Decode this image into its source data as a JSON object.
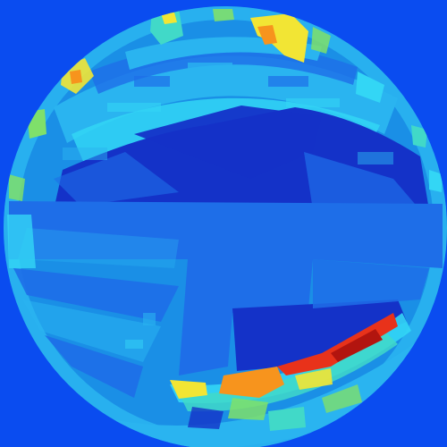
{
  "image": {
    "kind": "fisheye-heatmap",
    "palette": {
      "background": "#0a4cf0",
      "disc_base": "#1a8fe6",
      "deep_blue": "#1432c8",
      "mid_blue": "#1e6ee8",
      "light_blue": "#2ab4f0",
      "cyan": "#33d6f5",
      "teal": "#41d9c8",
      "green": "#7fe06a",
      "yellow": "#f2e534",
      "orange": "#f7941d",
      "red": "#e8321a",
      "dark_red": "#b2150f"
    },
    "regions": [
      "top-arc-warm-spots",
      "upper-deep-blue-cavity",
      "central-horizontal-band",
      "left-radial-streaks",
      "lower-warm-arc"
    ]
  }
}
